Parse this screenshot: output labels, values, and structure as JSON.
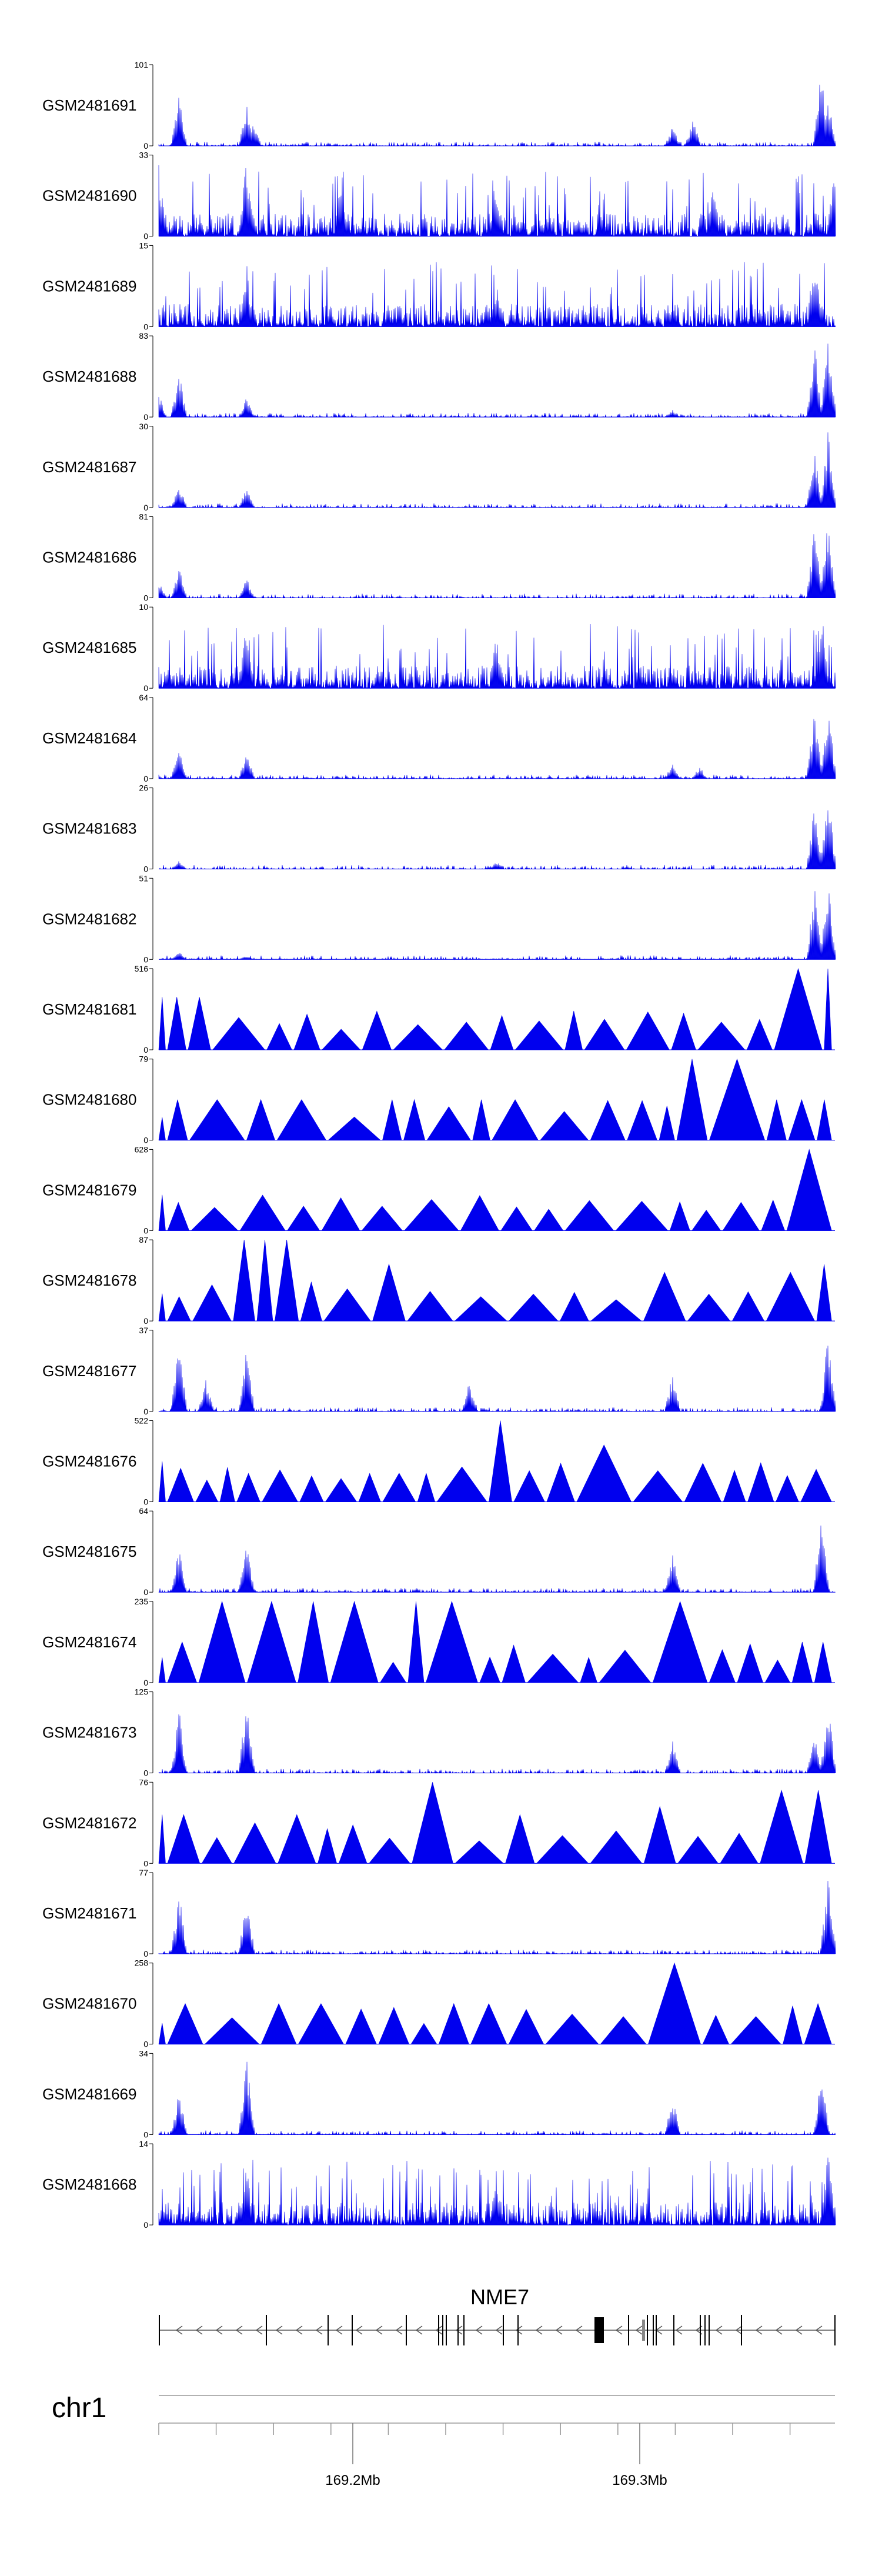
{
  "chart_data": {
    "type": "area",
    "color": "#0000ee",
    "chromosome": "chr1",
    "gene": "NME7",
    "x_axis": {
      "tick_labels": [
        "169.2Mb",
        "169.3Mb"
      ]
    },
    "tracks": [
      {
        "name": "GSM2481691",
        "max": "101",
        "min": "0",
        "style": "peaky",
        "peaks": [
          [
            0.03,
            0.65
          ],
          [
            0.13,
            0.55
          ],
          [
            0.14,
            0.3
          ],
          [
            0.76,
            0.25
          ],
          [
            0.79,
            0.35
          ],
          [
            0.98,
            1.0
          ],
          [
            0.99,
            0.6
          ]
        ]
      },
      {
        "name": "GSM2481690",
        "max": "33",
        "min": "0",
        "style": "dense",
        "peaks": [
          [
            0.0,
            0.9
          ],
          [
            0.13,
            1.0
          ],
          [
            0.27,
            0.8
          ],
          [
            0.5,
            0.6
          ],
          [
            0.82,
            0.7
          ],
          [
            1.0,
            1.0
          ]
        ]
      },
      {
        "name": "GSM2481689",
        "max": "15",
        "min": "0",
        "style": "dense",
        "peaks": [
          [
            0.13,
            0.7
          ],
          [
            0.5,
            0.5
          ],
          [
            0.97,
            1.0
          ]
        ]
      },
      {
        "name": "GSM2481688",
        "max": "83",
        "min": "0",
        "style": "peaky",
        "peaks": [
          [
            0.0,
            0.3
          ],
          [
            0.03,
            0.6
          ],
          [
            0.13,
            0.25
          ],
          [
            0.76,
            0.1
          ],
          [
            0.97,
            0.9
          ],
          [
            0.99,
            1.0
          ]
        ]
      },
      {
        "name": "GSM2481687",
        "max": "30",
        "min": "0",
        "style": "peaky",
        "peaks": [
          [
            0.03,
            0.3
          ],
          [
            0.13,
            0.25
          ],
          [
            0.97,
            0.8
          ],
          [
            0.99,
            1.0
          ]
        ]
      },
      {
        "name": "GSM2481686",
        "max": "81",
        "min": "0",
        "style": "peaky",
        "peaks": [
          [
            0.0,
            0.2
          ],
          [
            0.03,
            0.4
          ],
          [
            0.13,
            0.25
          ],
          [
            0.97,
            0.9
          ],
          [
            0.99,
            1.0
          ]
        ]
      },
      {
        "name": "GSM2481685",
        "max": "10",
        "min": "0",
        "style": "dense",
        "peaks": [
          [
            0.13,
            0.9
          ],
          [
            0.5,
            0.7
          ],
          [
            0.98,
            1.0
          ]
        ]
      },
      {
        "name": "GSM2481684",
        "max": "64",
        "min": "0",
        "style": "peaky",
        "peaks": [
          [
            0.03,
            0.4
          ],
          [
            0.13,
            0.35
          ],
          [
            0.76,
            0.2
          ],
          [
            0.8,
            0.15
          ],
          [
            0.97,
            0.9
          ],
          [
            0.99,
            1.0
          ]
        ]
      },
      {
        "name": "GSM2481683",
        "max": "26",
        "min": "0",
        "style": "peaky",
        "peaks": [
          [
            0.03,
            0.1
          ],
          [
            0.5,
            0.1
          ],
          [
            0.97,
            0.9
          ],
          [
            0.99,
            1.0
          ]
        ]
      },
      {
        "name": "GSM2481682",
        "max": "51",
        "min": "0",
        "style": "peaky",
        "peaks": [
          [
            0.03,
            0.1
          ],
          [
            0.13,
            0.05
          ],
          [
            0.97,
            0.95
          ],
          [
            0.99,
            1.0
          ]
        ]
      },
      {
        "name": "GSM2481681",
        "max": "516",
        "min": "0",
        "style": "triangles",
        "peaks": [
          [
            0.03,
            0.65
          ],
          [
            0.13,
            0.15
          ],
          [
            0.25,
            0.1
          ],
          [
            0.5,
            0.1
          ],
          [
            0.65,
            0.1
          ],
          [
            0.98,
            1.0
          ]
        ]
      },
      {
        "name": "GSM2481680",
        "max": "79",
        "min": "0",
        "style": "triangles",
        "peaks": [
          [
            0.05,
            0.5
          ],
          [
            0.12,
            0.5
          ],
          [
            0.2,
            0.5
          ],
          [
            0.35,
            0.5
          ],
          [
            0.5,
            0.5
          ],
          [
            0.8,
            1.0
          ],
          [
            0.82,
            1.0
          ],
          [
            0.9,
            0.5
          ],
          [
            0.95,
            0.5
          ]
        ]
      },
      {
        "name": "GSM2481679",
        "max": "628",
        "min": "0",
        "style": "triangles",
        "peaks": [
          [
            0.0,
            0.1
          ],
          [
            0.05,
            0.1
          ],
          [
            0.13,
            0.3
          ],
          [
            0.5,
            0.05
          ],
          [
            0.77,
            0.2
          ],
          [
            0.97,
            0.3
          ],
          [
            0.99,
            1.0
          ]
        ]
      },
      {
        "name": "GSM2481678",
        "max": "87",
        "min": "0",
        "style": "triangles",
        "peaks": [
          [
            0.03,
            0.3
          ],
          [
            0.16,
            1.0
          ],
          [
            0.35,
            0.7
          ],
          [
            0.5,
            0.3
          ],
          [
            0.75,
            0.6
          ],
          [
            0.95,
            0.6
          ],
          [
            0.99,
            0.7
          ]
        ]
      },
      {
        "name": "GSM2481677",
        "max": "37",
        "min": "0",
        "style": "peaky",
        "peaks": [
          [
            0.03,
            0.95
          ],
          [
            0.07,
            0.4
          ],
          [
            0.13,
            0.8
          ],
          [
            0.46,
            0.4
          ],
          [
            0.76,
            0.5
          ],
          [
            0.99,
            1.0
          ]
        ]
      },
      {
        "name": "GSM2481676",
        "max": "522",
        "min": "0",
        "style": "triangles",
        "peaks": [
          [
            0.0,
            0.35
          ],
          [
            0.12,
            0.35
          ],
          [
            0.35,
            0.35
          ],
          [
            0.41,
            0.35
          ],
          [
            0.5,
            1.0
          ],
          [
            0.54,
            0.35
          ],
          [
            0.68,
            0.7
          ],
          [
            0.82,
            0.35
          ],
          [
            0.99,
            0.4
          ]
        ]
      },
      {
        "name": "GSM2481675",
        "max": "64",
        "min": "0",
        "style": "peaky",
        "peaks": [
          [
            0.03,
            0.6
          ],
          [
            0.13,
            0.6
          ],
          [
            0.76,
            0.5
          ],
          [
            0.98,
            1.0
          ]
        ]
      },
      {
        "name": "GSM2481674",
        "max": "235",
        "min": "0",
        "style": "triangles",
        "peaks": [
          [
            0.07,
            0.5
          ],
          [
            0.13,
            1.0
          ],
          [
            0.26,
            1.0
          ],
          [
            0.42,
            1.0
          ],
          [
            0.75,
            1.0
          ],
          [
            0.96,
            0.5
          ]
        ]
      },
      {
        "name": "GSM2481673",
        "max": "125",
        "min": "0",
        "style": "peaky",
        "peaks": [
          [
            0.03,
            0.8
          ],
          [
            0.13,
            1.0
          ],
          [
            0.76,
            0.4
          ],
          [
            0.97,
            0.5
          ],
          [
            0.99,
            0.9
          ]
        ]
      },
      {
        "name": "GSM2481672",
        "max": "76",
        "min": "0",
        "style": "triangles",
        "peaks": [
          [
            0.03,
            0.6
          ],
          [
            0.2,
            0.6
          ],
          [
            0.41,
            1.0
          ],
          [
            0.43,
            1.0
          ],
          [
            0.55,
            0.6
          ],
          [
            0.74,
            0.7
          ],
          [
            0.94,
            0.9
          ],
          [
            0.99,
            0.7
          ]
        ]
      },
      {
        "name": "GSM2481671",
        "max": "77",
        "min": "0",
        "style": "peaky",
        "peaks": [
          [
            0.03,
            0.8
          ],
          [
            0.13,
            0.8
          ],
          [
            0.99,
            1.0
          ]
        ]
      },
      {
        "name": "GSM2481670",
        "max": "258",
        "min": "0",
        "style": "triangles",
        "peaks": [
          [
            0.06,
            0.5
          ],
          [
            0.2,
            0.5
          ],
          [
            0.47,
            0.5
          ],
          [
            0.75,
            1.0
          ],
          [
            0.76,
            0.5
          ],
          [
            0.99,
            0.5
          ]
        ]
      },
      {
        "name": "GSM2481669",
        "max": "34",
        "min": "0",
        "style": "peaky",
        "peaks": [
          [
            0.03,
            0.6
          ],
          [
            0.13,
            1.0
          ],
          [
            0.76,
            0.5
          ],
          [
            0.98,
            0.8
          ]
        ]
      },
      {
        "name": "GSM2481668",
        "max": "14",
        "min": "0",
        "style": "dense",
        "peaks": [
          [
            0.13,
            0.7
          ],
          [
            0.5,
            0.6
          ],
          [
            0.99,
            1.0
          ]
        ]
      }
    ]
  }
}
